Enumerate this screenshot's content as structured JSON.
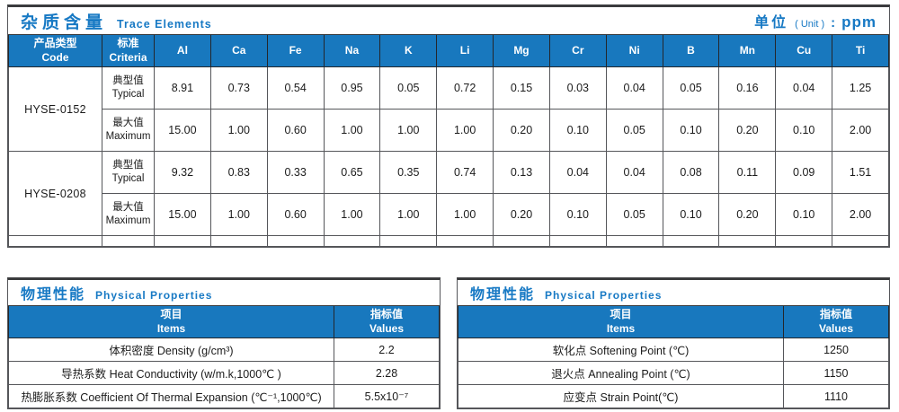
{
  "colors": {
    "accent_blue": "#1878BE",
    "title_text_blue": "#1779C4",
    "border_dark": "#3A3B3D",
    "grid_line": "#55565A",
    "value_text": "#1B1B1B"
  },
  "trace": {
    "title_zh": "杂质含量",
    "title_en": "Trace Elements",
    "unit_zh": "单位",
    "unit_en": "( Unit )",
    "unit_colon": ":",
    "unit_value": "ppm",
    "col_product_zh": "产品类型",
    "col_product_en": "Code",
    "col_criteria_zh": "标准",
    "col_criteria_en": "Criteria",
    "elements": [
      "Al",
      "Ca",
      "Fe",
      "Na",
      "K",
      "Li",
      "Mg",
      "Cr",
      "Ni",
      "B",
      "Mn",
      "Cu",
      "Ti"
    ],
    "products": [
      {
        "code": "HYSE-0152",
        "rows": [
          {
            "criteria_zh": "典型值",
            "criteria_en": "Typical",
            "values": [
              "8.91",
              "0.73",
              "0.54",
              "0.95",
              "0.05",
              "0.72",
              "0.15",
              "0.03",
              "0.04",
              "0.05",
              "0.16",
              "0.04",
              "1.25"
            ]
          },
          {
            "criteria_zh": "最大值",
            "criteria_en": "Maximum",
            "values": [
              "15.00",
              "1.00",
              "0.60",
              "1.00",
              "1.00",
              "1.00",
              "0.20",
              "0.10",
              "0.05",
              "0.10",
              "0.20",
              "0.10",
              "2.00"
            ]
          }
        ]
      },
      {
        "code": "HYSE-0208",
        "rows": [
          {
            "criteria_zh": "典型值",
            "criteria_en": "Typical",
            "values": [
              "9.32",
              "0.83",
              "0.33",
              "0.65",
              "0.35",
              "0.74",
              "0.13",
              "0.04",
              "0.04",
              "0.08",
              "0.11",
              "0.09",
              "1.51"
            ]
          },
          {
            "criteria_zh": "最大值",
            "criteria_en": "Maximum",
            "values": [
              "15.00",
              "1.00",
              "0.60",
              "1.00",
              "1.00",
              "1.00",
              "0.20",
              "0.10",
              "0.05",
              "0.10",
              "0.20",
              "0.10",
              "2.00"
            ]
          }
        ]
      }
    ]
  },
  "physical_left": {
    "title_zh": "物理性能",
    "title_en": "Physical Properties",
    "col_items_zh": "项目",
    "col_items_en": "Items",
    "col_values_zh": "指标值",
    "col_values_en": "Values",
    "rows": [
      {
        "item": "体积密度 Density (g/cm³)",
        "value": "2.2"
      },
      {
        "item": "导热系数 Heat Conductivity (w/m.k,1000℃ )",
        "value": "2.28"
      },
      {
        "item": "热膨胀系数 Coefficient Of Thermal Expansion (℃⁻¹,1000℃)",
        "value": "5.5x10⁻⁷"
      }
    ]
  },
  "physical_right": {
    "title_zh": "物理性能",
    "title_en": "Physical Properties",
    "col_items_zh": "项目",
    "col_items_en": "Items",
    "col_values_zh": "指标值",
    "col_values_en": "Values",
    "rows": [
      {
        "item": "软化点 Softening Point (℃)",
        "value": "1250"
      },
      {
        "item": "退火点 Annealing Point (℃)",
        "value": "1150"
      },
      {
        "item": "应变点 Strain Point(℃)",
        "value": "1110"
      }
    ]
  }
}
